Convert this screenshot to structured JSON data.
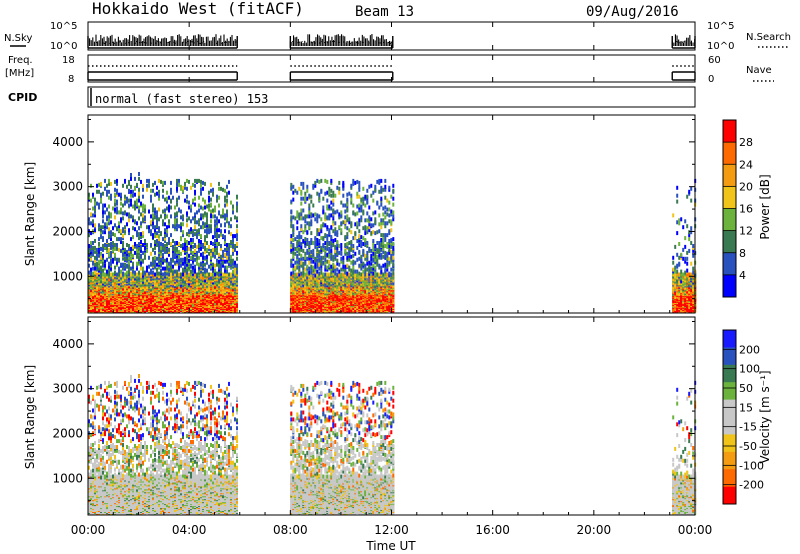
{
  "header": {
    "station": "Hokkaido West (fitACF)",
    "beam": "Beam 13",
    "date": "09/Aug/2016"
  },
  "noise_panel": {
    "left_label": "N.Sky",
    "right_label": "N.Search",
    "left_ticks": [
      "10^5",
      "10^0"
    ],
    "right_ticks": [
      "10^5",
      "10^0"
    ]
  },
  "freq_panel": {
    "left_label_1": "Freq.",
    "left_label_2": "[MHz]",
    "left_ticks": [
      "18",
      "8"
    ],
    "right_label": "Nave",
    "right_ticks": [
      "60",
      "0"
    ]
  },
  "cpid": {
    "label": "CPID",
    "value": "normal (fast stereo) 153"
  },
  "x_axis": {
    "label": "Time UT",
    "ticks": [
      "00:00",
      "04:00",
      "08:00",
      "12:00",
      "16:00",
      "20:00",
      "00:00"
    ]
  },
  "colors": {
    "power_scale": [
      "#0000ff",
      "#2a52be",
      "#3a7a52",
      "#6bb33d",
      "#f0c419",
      "#f39c12",
      "#ff6a00",
      "#ff0000"
    ],
    "velocity_scale": [
      "#ff0000",
      "#ff6a00",
      "#f39c12",
      "#f0c419",
      "#c8c8c8",
      "#c8c8c8",
      "#6bb33d",
      "#3a7a52",
      "#2a52be",
      "#1a1aff"
    ]
  },
  "chart_data": [
    {
      "type": "heatmap",
      "title": "",
      "xlabel": "Time UT",
      "ylabel": "Slant Range [km]",
      "xlim": [
        0,
        24
      ],
      "ylim": [
        180,
        4600
      ],
      "y_ticks": [
        "4000",
        "3000",
        "2000",
        "1000"
      ],
      "colorbar_label": "Power [dB]",
      "colorbar_ticks": [
        "28",
        "24",
        "20",
        "16",
        "12",
        "8",
        "4"
      ],
      "coverage_hours": [
        [
          0,
          5.9
        ],
        [
          8,
          12.05
        ],
        [
          23.1,
          24
        ]
      ]
    },
    {
      "type": "heatmap",
      "title": "",
      "xlabel": "Time UT",
      "ylabel": "Slant Range [km]",
      "xlim": [
        0,
        24
      ],
      "ylim": [
        180,
        4600
      ],
      "y_ticks": [
        "4000",
        "3000",
        "2000",
        "1000"
      ],
      "colorbar_label": "Velocity [m s⁻¹]",
      "colorbar_ticks": [
        "200",
        "100",
        "50",
        "15",
        "-15",
        "-50",
        "-100",
        "-200"
      ],
      "coverage_hours": [
        [
          0,
          5.9
        ],
        [
          8,
          12.05
        ],
        [
          23.1,
          24
        ]
      ]
    }
  ]
}
